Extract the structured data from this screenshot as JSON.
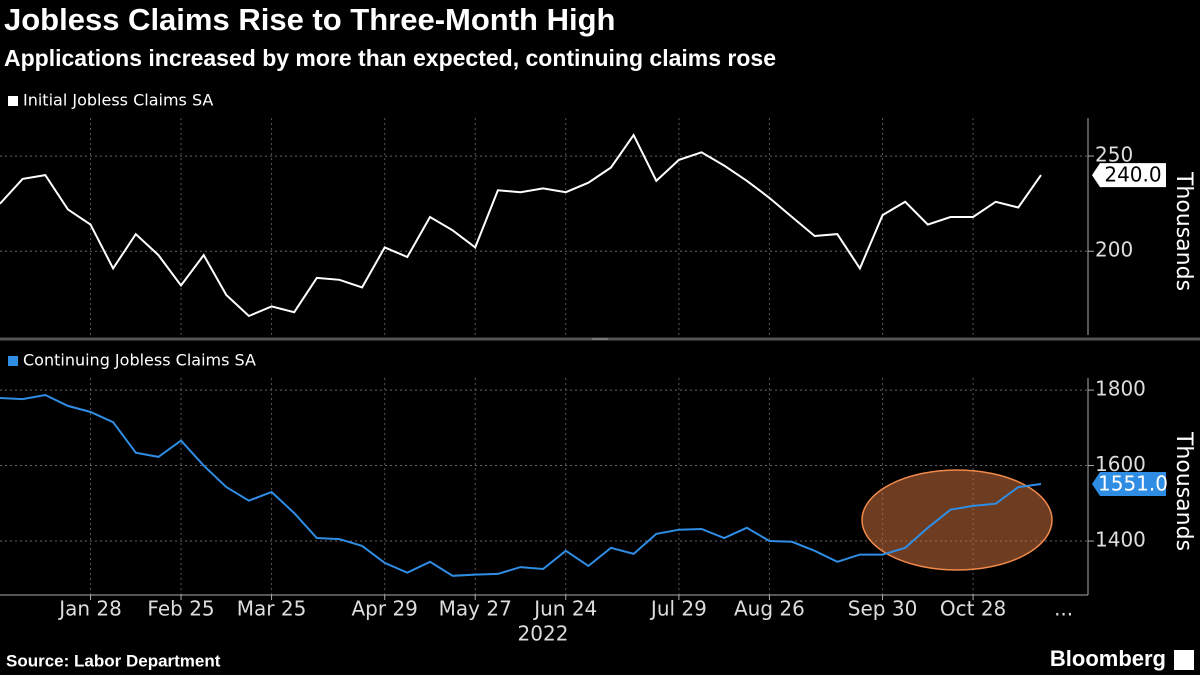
{
  "title": "Jobless Claims Rise to Three-Month High",
  "subtitle": "Applications increased by more than expected, continuing claims rose",
  "x_axis": {
    "categories": [
      null,
      null,
      null,
      null,
      "Jan 28",
      null,
      null,
      null,
      "Feb 25",
      null,
      null,
      null,
      "Mar 25",
      null,
      null,
      null,
      null,
      "Apr 29",
      null,
      null,
      null,
      "May 27",
      null,
      null,
      null,
      "Jun 24",
      null,
      null,
      null,
      null,
      "Jul 29",
      null,
      null,
      null,
      "Aug 26",
      null,
      null,
      null,
      null,
      "Sep 30",
      null,
      null,
      null,
      "Oct 28",
      null,
      null,
      null
    ],
    "more_label": "...",
    "year_label": "2022"
  },
  "chart_data": [
    {
      "type": "line",
      "y_axis_label": "Thousands",
      "ylim": [
        156,
        270
      ],
      "yticks": [
        200,
        250
      ],
      "grid": true,
      "last_value_label": "240.0",
      "series": [
        {
          "name": "Initial Jobless Claims SA",
          "color": "#ffffff",
          "values": [
            225,
            238,
            240,
            222,
            214,
            191,
            209,
            198,
            182,
            198,
            177,
            166,
            171,
            168,
            186,
            185,
            181,
            202,
            197,
            218,
            211,
            202,
            232,
            231,
            233,
            231,
            236,
            244,
            261,
            237,
            248,
            252,
            245,
            237,
            228,
            218,
            208,
            209,
            191,
            219,
            226,
            214,
            218,
            218,
            226,
            223,
            240
          ]
        }
      ]
    },
    {
      "type": "line",
      "y_axis_label": "Thousands",
      "ylim": [
        1257,
        1832
      ],
      "yticks": [
        1400,
        1600,
        1800
      ],
      "grid": true,
      "last_value_label": "1551.0",
      "series": [
        {
          "name": "Continuing Jobless Claims SA",
          "color": "#2f8de4",
          "values": [
            1779,
            1776,
            1787,
            1758,
            1742,
            1715,
            1634,
            1623,
            1666,
            1600,
            1543,
            1507,
            1530,
            1474,
            1408,
            1405,
            1387,
            1342,
            1316,
            1345,
            1308,
            1311,
            1313,
            1331,
            1326,
            1374,
            1334,
            1382,
            1366,
            1419,
            1430,
            1432,
            1408,
            1435,
            1400,
            1398,
            1374,
            1345,
            1364,
            1364,
            1382,
            1435,
            1483,
            1493,
            1499,
            1543,
            1551
          ]
        }
      ]
    }
  ],
  "footer": {
    "source": "Source: Labor Department",
    "brand": "Bloomberg"
  }
}
